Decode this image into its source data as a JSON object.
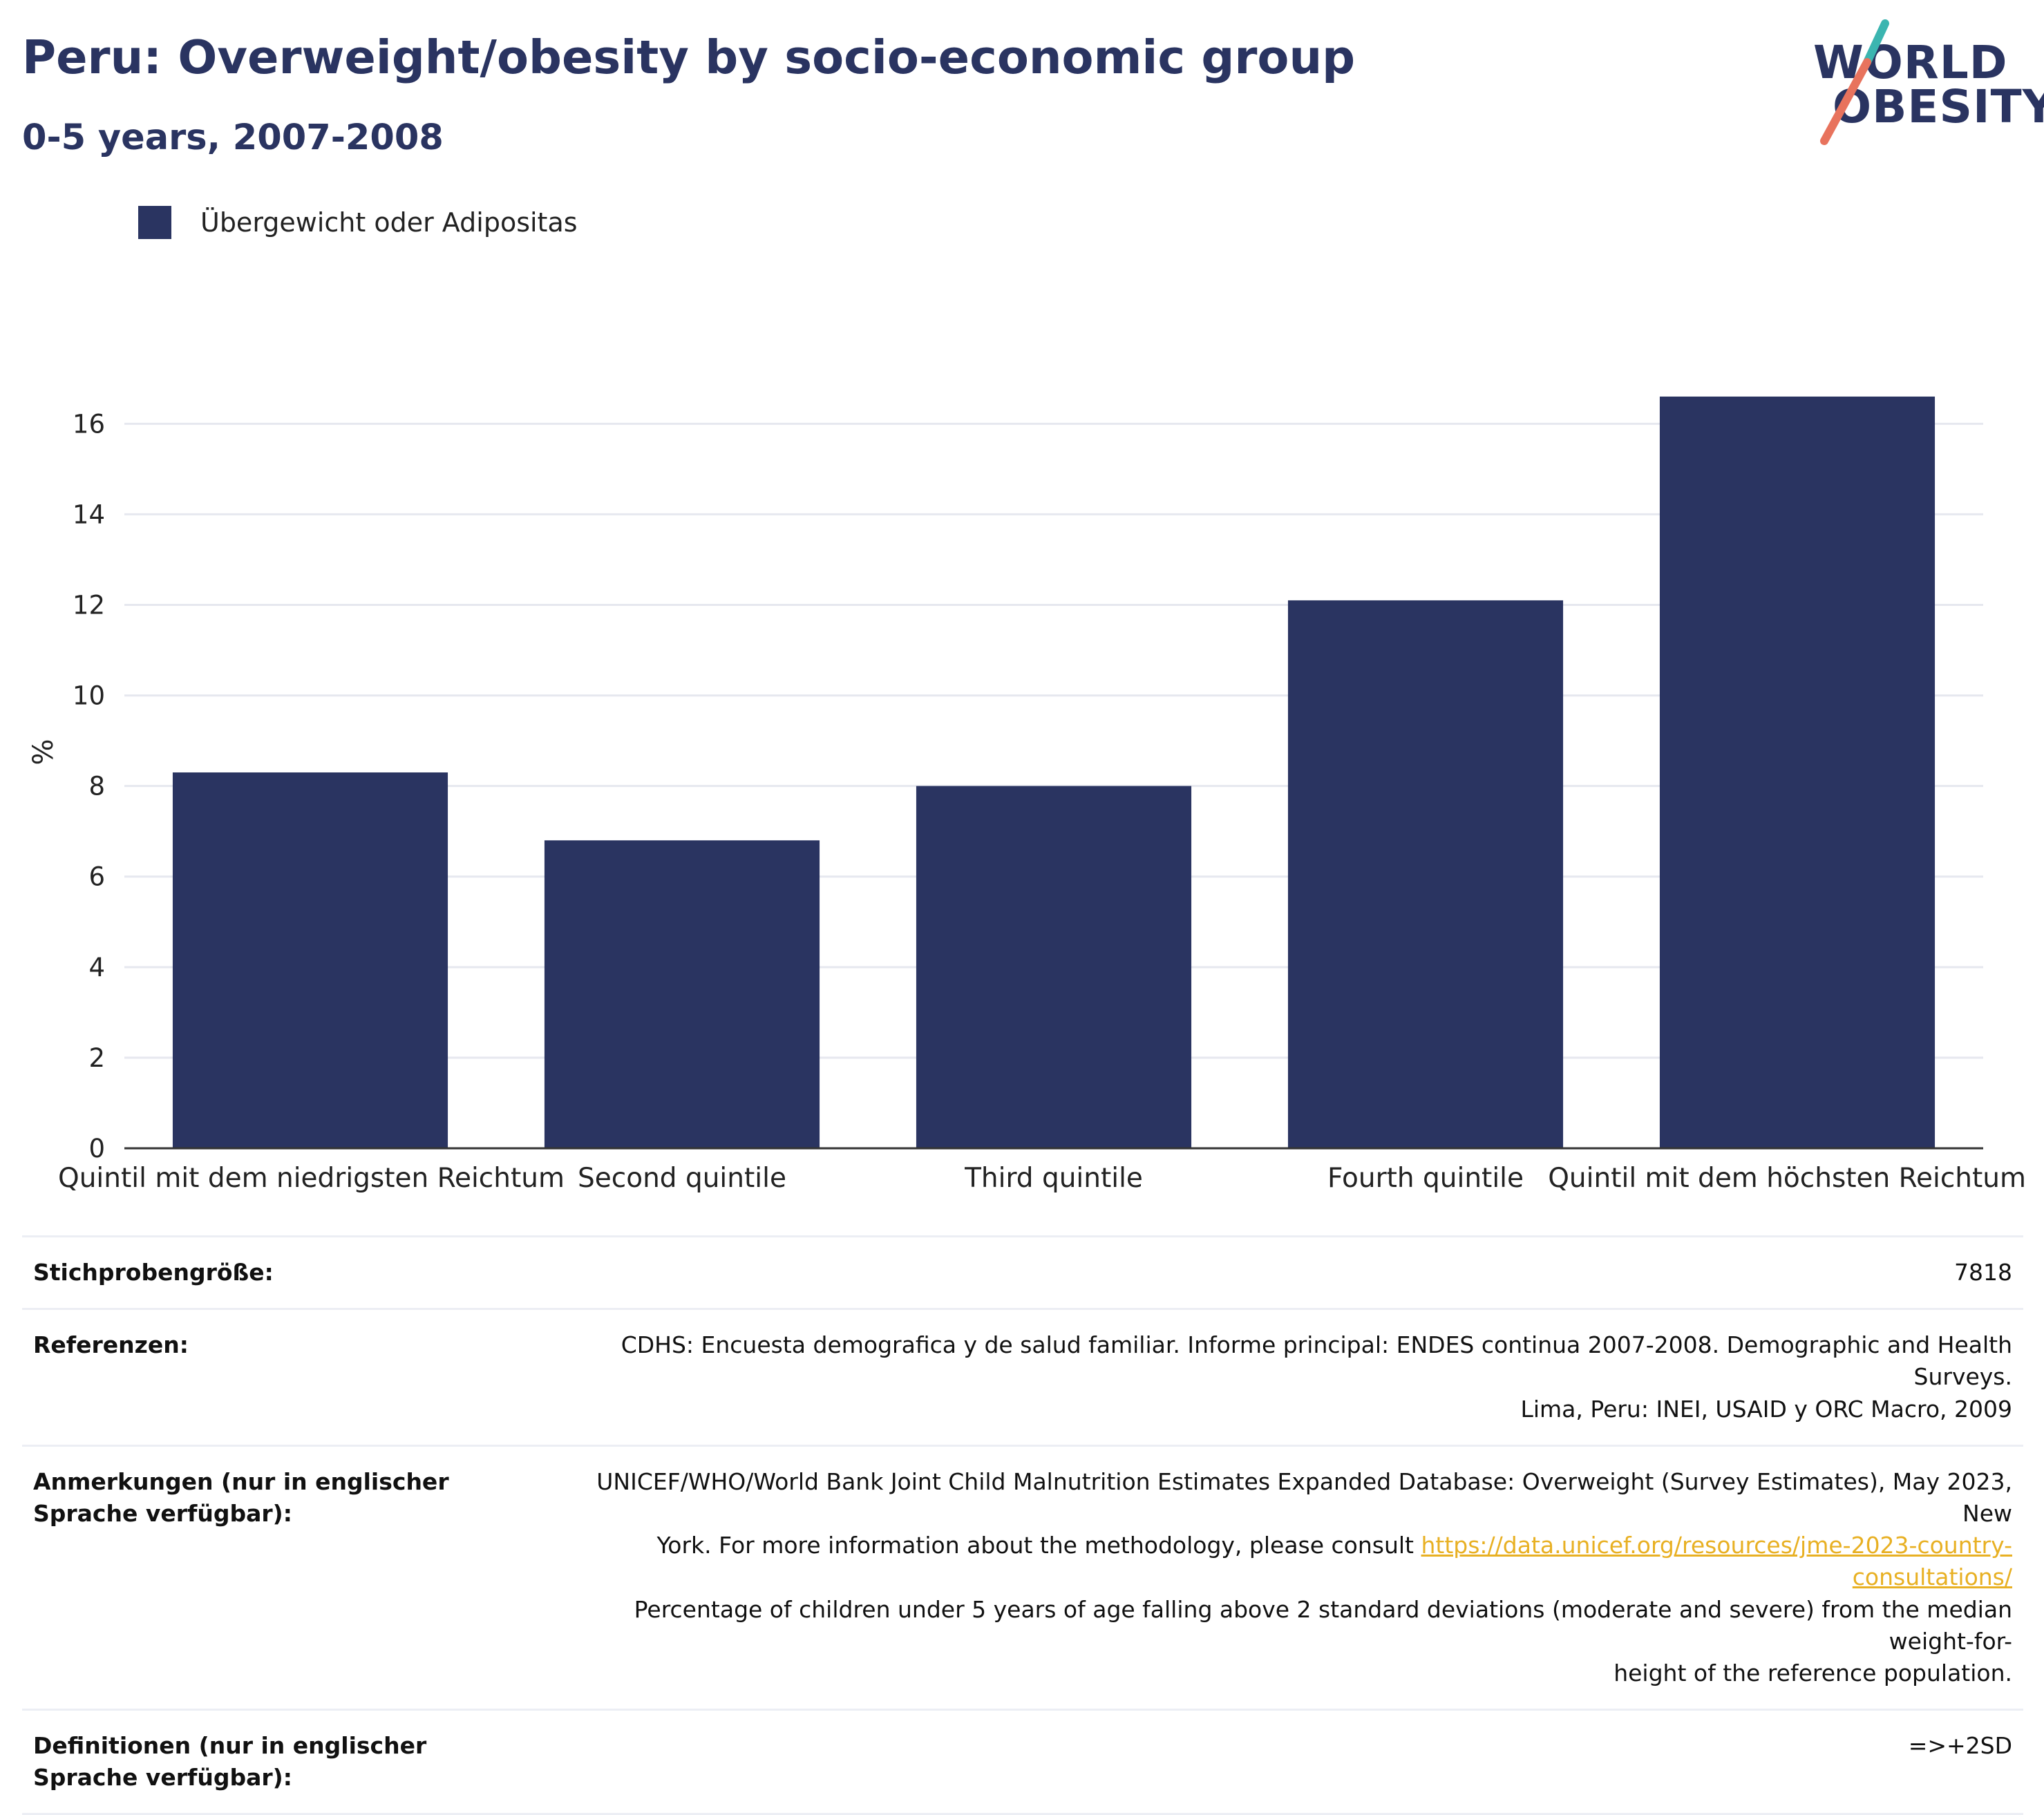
{
  "header": {
    "title": "Peru: Overweight/obesity by socio-economic group",
    "subtitle": "0-5 years, 2007-2008"
  },
  "logo": {
    "line1": "WORLD",
    "line2": "OBESITY",
    "colors": {
      "navy": "#2a3461",
      "teal": "#3bb5b0",
      "coral": "#e8735d"
    }
  },
  "legend": {
    "label": "Übergewicht oder Adipositas",
    "color": "#2a3461"
  },
  "chart_data": {
    "type": "bar",
    "categories": [
      "Quintil mit dem niedrigsten Reichtum",
      "Second quintile",
      "Third quintile",
      "Fourth quintile",
      "Quintil mit dem höchsten Reichtum"
    ],
    "series": [
      {
        "name": "Übergewicht oder Adipositas",
        "values": [
          8.3,
          6.8,
          8.0,
          12.1,
          16.6
        ],
        "color": "#2a3461"
      }
    ],
    "ylabel": "%",
    "ylim": [
      0,
      17.5
    ],
    "yticks": [
      0,
      2,
      4,
      6,
      8,
      10,
      12,
      14,
      16
    ],
    "grid": true
  },
  "info": {
    "sample": {
      "label": "Stichprobengröße:",
      "value": "7818"
    },
    "references": {
      "label": "Referenzen:",
      "line1": "CDHS: Encuesta demografica y de salud familiar. Informe principal: ENDES continua 2007-2008. Demographic and Health Surveys.",
      "line2": "Lima, Peru: INEI, USAID y ORC Macro, 2009"
    },
    "notes": {
      "label": "Anmerkungen (nur in englischer Sprache verfügbar):",
      "line1": "UNICEF/WHO/World Bank Joint Child Malnutrition Estimates Expanded Database: Overweight (Survey Estimates), May 2023, New",
      "line2": "York. For more information about the methodology, please consult",
      "link": "https://data.unicef.org/resources/jme-2023-country-consultations/",
      "line3": "Percentage of children under 5 years of age falling above 2 standard deviations (moderate and severe) from the median weight-for-",
      "line4": "height of the reference population."
    },
    "definitions": {
      "label": "Definitionen (nur in englischer Sprache verfügbar):",
      "value": "=>+2SD"
    }
  }
}
